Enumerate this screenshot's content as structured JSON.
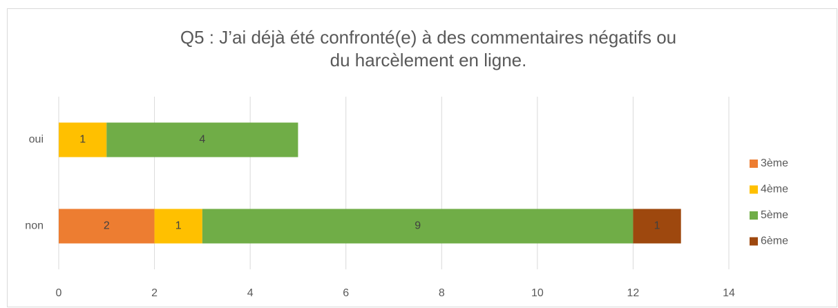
{
  "chart_data": {
    "type": "stacked-barh",
    "title": "Q5 : J’ai déjà été confronté(e) à des commentaires négatifs ou du harcèlement en ligne.",
    "categories": [
      "oui",
      "non"
    ],
    "series": [
      {
        "name": "3ème",
        "color": "#ed7d31",
        "values": [
          0,
          2
        ]
      },
      {
        "name": "4ème",
        "color": "#ffc000",
        "values": [
          1,
          1
        ]
      },
      {
        "name": "5ème",
        "color": "#70ad47",
        "values": [
          4,
          9
        ]
      },
      {
        "name": "6ème",
        "color": "#9e480e",
        "values": [
          0,
          1
        ]
      }
    ],
    "xlim": [
      0,
      14
    ],
    "xticks": [
      0,
      2,
      4,
      6,
      8,
      10,
      12,
      14
    ],
    "grid": true,
    "legend": "right"
  }
}
